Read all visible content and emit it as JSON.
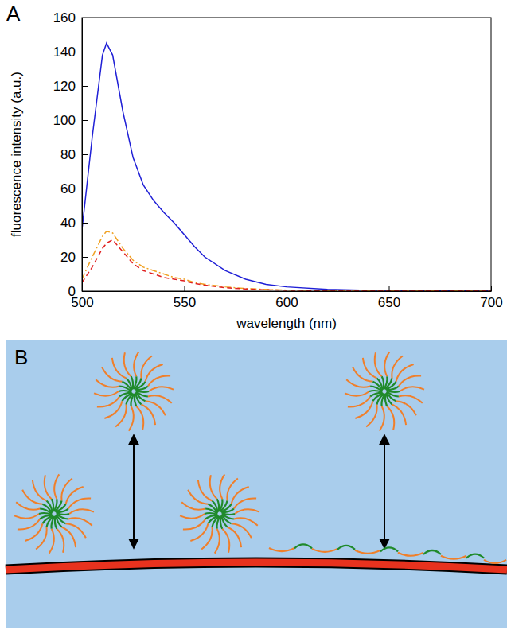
{
  "chart_data": {
    "type": "line",
    "panel_label": "A",
    "x_label": "wavelength (nm)",
    "y_label": "fluorescence intensity (a.u.)",
    "x": [
      500,
      505,
      510,
      512,
      515,
      520,
      525,
      530,
      535,
      540,
      545,
      550,
      555,
      560,
      570,
      580,
      590,
      600,
      620,
      640,
      660,
      680,
      700
    ],
    "series": [
      {
        "color": "#1f1fd6",
        "line_style": "solid",
        "values": [
          36,
          90,
          138,
          145,
          138,
          105,
          78,
          62,
          53,
          46,
          40,
          33,
          26,
          20,
          12,
          7,
          4,
          2.5,
          1,
          0.5,
          0.3,
          0.2,
          0.1
        ]
      },
      {
        "color": "#f0a020",
        "line_style": "dash-dot",
        "values": [
          7,
          20,
          32,
          35,
          34,
          25,
          18,
          14,
          12,
          10,
          8,
          7,
          5,
          4,
          2.5,
          1.5,
          1,
          0.6,
          0.3,
          0.2,
          0.1,
          0.1,
          0.1
        ]
      },
      {
        "color": "#e02020",
        "line_style": "dashed",
        "values": [
          5,
          14,
          25,
          28,
          30,
          23,
          16,
          12,
          10,
          8,
          7,
          6,
          4.5,
          3.5,
          2,
          1.3,
          0.8,
          0.5,
          0.3,
          0.2,
          0.1,
          0.1,
          0.1
        ]
      }
    ],
    "xlim": [
      500,
      700
    ],
    "xticks": [
      500,
      550,
      600,
      650,
      700
    ],
    "ylim": [
      0,
      160
    ],
    "yticks": [
      0,
      20,
      40,
      60,
      80,
      100,
      120,
      140,
      160
    ],
    "grid": false
  },
  "diagram": {
    "panel_label": "B"
  }
}
